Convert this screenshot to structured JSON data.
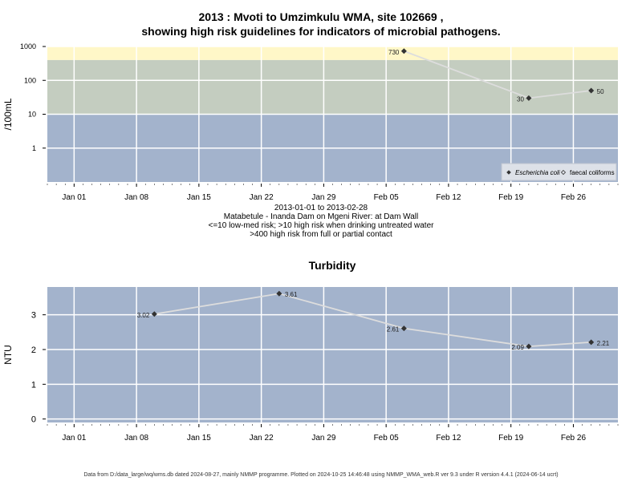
{
  "header": {
    "title_line1": "2013 : Mvoti to Umzimkulu WMA, site 102669 ,",
    "title_line2": "showing high risk guidelines for indicators of microbial pathogens."
  },
  "middle": {
    "date_range": "2013-01-01 to 2013-02-28",
    "site_name": "Matabetule - Inanda Dam on Mgeni River: at Dam Wall",
    "guideline_1": "<=10 low-med risk; >10 high risk when drinking untreated water",
    "guideline_2": ">400 high risk from full or partial contact"
  },
  "footer": {
    "text": "Data from D:/data_large/wq/wms.db dated 2024-08-27, mainly NMMP programme. Plotted on 2024-10-25 14:46:48 using NMMP_WMA_web.R ver 9.3 under R version 4.4.1 (2024-06-14 ucrt)"
  },
  "colors": {
    "band_low": "#a3b3cc",
    "band_mid": "#c4cdc0",
    "band_high": "#fff7c8",
    "line": "#dddddd",
    "grid": "#ffffff",
    "point": "#333333"
  },
  "chart_data": [
    {
      "type": "line",
      "title": "",
      "ylabel": "/100mL",
      "y_scale": "log",
      "ylim": [
        0.1,
        1000
      ],
      "y_ticks": [
        "1",
        "10",
        "100",
        "1000"
      ],
      "x_ticks": [
        "Jan 01",
        "Jan 08",
        "Jan 15",
        "Jan 22",
        "Jan 29",
        "Feb 05",
        "Feb 12",
        "Feb 19",
        "Feb 26"
      ],
      "xlim": [
        "2012-12-29",
        "2013-03-03"
      ],
      "bands": [
        {
          "from": 0.1,
          "to": 10,
          "color": "#a3b3cc"
        },
        {
          "from": 10,
          "to": 400,
          "color": "#c4cdc0"
        },
        {
          "from": 400,
          "to": 1000,
          "color": "#fff7c8"
        }
      ],
      "legend_position": "bottom-right",
      "series": [
        {
          "name": "Escherichia coli",
          "marker": "filled-diamond",
          "x": [
            "2013-02-07",
            "2013-02-21",
            "2013-02-28"
          ],
          "y": [
            730,
            30,
            50
          ],
          "labels": [
            "730",
            "30",
            "50"
          ]
        },
        {
          "name": "faecal coliforms",
          "marker": "open-diamond",
          "x": [],
          "y": [],
          "labels": []
        }
      ]
    },
    {
      "type": "line",
      "title": "Turbidity",
      "ylabel": "NTU",
      "ylim": [
        -0.1,
        3.8
      ],
      "y_ticks": [
        "0",
        "1",
        "2",
        "3"
      ],
      "x_ticks": [
        "Jan 01",
        "Jan 08",
        "Jan 15",
        "Jan 22",
        "Jan 29",
        "Feb 05",
        "Feb 12",
        "Feb 19",
        "Feb 26"
      ],
      "xlim": [
        "2012-12-29",
        "2013-03-03"
      ],
      "series": [
        {
          "name": "",
          "marker": "filled-diamond",
          "x": [
            "2013-01-10",
            "2013-01-24",
            "2013-02-07",
            "2013-02-21",
            "2013-02-28"
          ],
          "y": [
            3.02,
            3.61,
            2.61,
            2.09,
            2.21
          ],
          "labels": [
            "3.02",
            "3.61",
            "2.61",
            "2.09",
            "2.21"
          ]
        }
      ]
    }
  ]
}
